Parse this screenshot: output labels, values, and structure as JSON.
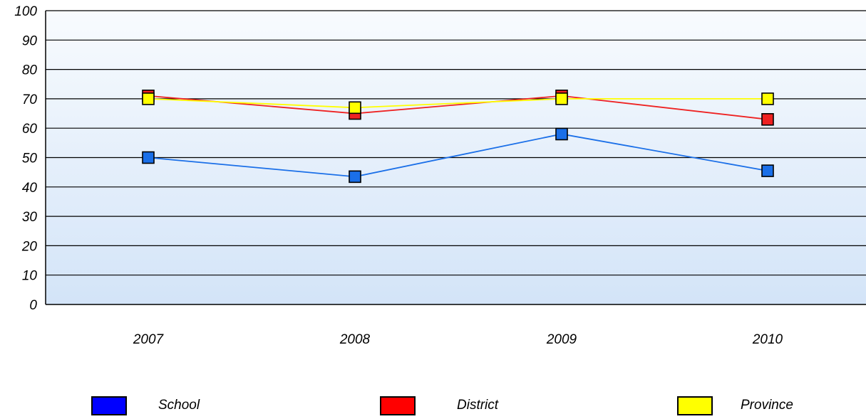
{
  "chart_data": {
    "type": "line",
    "title": "",
    "xlabel": "",
    "ylabel": "",
    "categories": [
      "2007",
      "2008",
      "2009",
      "2010"
    ],
    "ylim": [
      0,
      100
    ],
    "yticks": [
      "0",
      "10",
      "20",
      "30",
      "40",
      "50",
      "60",
      "70",
      "80",
      "90",
      "100"
    ],
    "grid": true,
    "legend_position": "bottom",
    "series": [
      {
        "name": "School",
        "values": [
          50,
          43.5,
          58,
          45.5
        ],
        "color": "#1a6fe8",
        "legend_color": "#0000ff"
      },
      {
        "name": "District",
        "values": [
          71,
          65,
          71,
          63
        ],
        "color": "#ee2222",
        "legend_color": "#ff0000"
      },
      {
        "name": "Province",
        "values": [
          70,
          67,
          70,
          70
        ],
        "color": "#ffff00",
        "legend_color": "#ffff00"
      }
    ]
  }
}
